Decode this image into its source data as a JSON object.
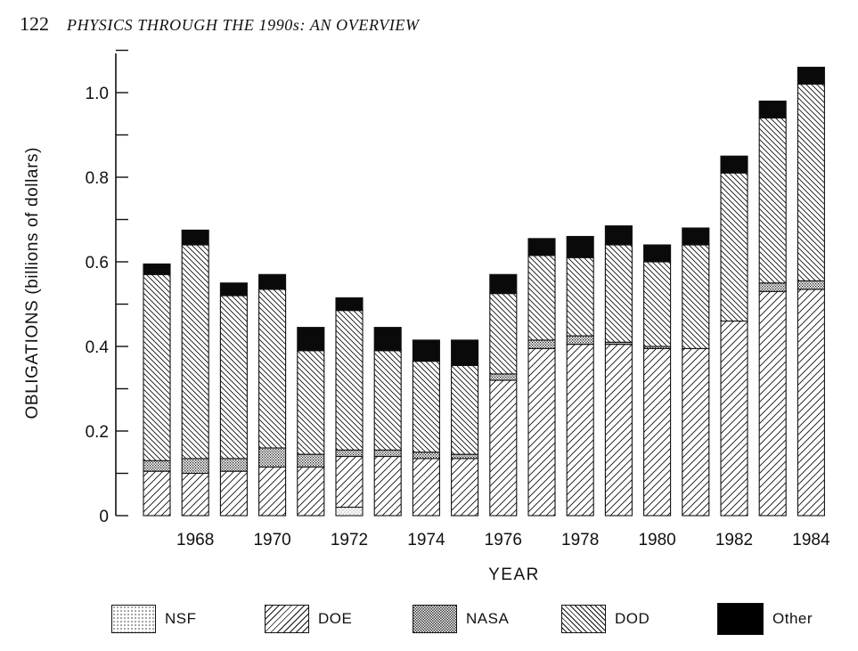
{
  "page": {
    "number": "122",
    "running_title": "PHYSICS THROUGH THE 1990s: AN OVERVIEW"
  },
  "colors": {
    "ink": "#111111",
    "background": "#ffffff",
    "NSF": "dotted-light",
    "DOE": "hatch-forward",
    "NASA": "dotted-dense",
    "DOD": "hatch-back",
    "Other": "#000000"
  },
  "chart_data": {
    "type": "bar",
    "stacked": true,
    "title": "",
    "xlabel": "YEAR",
    "ylabel": "OBLIGATIONS (billions of dollars)",
    "ylim": [
      0,
      1.1
    ],
    "yticks": [
      0,
      0.2,
      0.4,
      0.6,
      0.8,
      1.0
    ],
    "ytick_labels": [
      "0",
      "0.2",
      "0.4",
      "0.6",
      "0.8",
      "1.0"
    ],
    "xtick_labels": [
      "1968",
      "1970",
      "1972",
      "1974",
      "1976",
      "1978",
      "1980",
      "1982",
      "1984"
    ],
    "categories": [
      1967,
      1968,
      1969,
      1970,
      1971,
      1972,
      1973,
      1974,
      1975,
      1976,
      1977,
      1978,
      1979,
      1980,
      1981,
      1982,
      1983,
      1984
    ],
    "legend_position": "bottom",
    "series": [
      {
        "name": "NSF",
        "pattern": "dotted-light",
        "values": [
          0,
          0,
          0,
          0,
          0,
          0.02,
          0,
          0,
          0,
          0,
          0,
          0,
          0,
          0,
          0,
          0,
          0,
          0
        ]
      },
      {
        "name": "DOE",
        "pattern": "hatch-forward",
        "values": [
          0.105,
          0.1,
          0.105,
          0.115,
          0.115,
          0.12,
          0.14,
          0.135,
          0.135,
          0.32,
          0.395,
          0.405,
          0.405,
          0.395,
          0.395,
          0.46,
          0.53,
          0.535
        ]
      },
      {
        "name": "NASA",
        "pattern": "dotted-dense",
        "values": [
          0.025,
          0.035,
          0.03,
          0.045,
          0.03,
          0.015,
          0.015,
          0.015,
          0.01,
          0.015,
          0.02,
          0.02,
          0.005,
          0.005,
          0.0,
          0.0,
          0.02,
          0.02
        ]
      },
      {
        "name": "DOD",
        "pattern": "hatch-back",
        "values": [
          0.44,
          0.505,
          0.385,
          0.375,
          0.245,
          0.33,
          0.235,
          0.215,
          0.21,
          0.19,
          0.2,
          0.185,
          0.23,
          0.2,
          0.245,
          0.35,
          0.39,
          0.465
        ]
      },
      {
        "name": "Other",
        "pattern": "solid",
        "values": [
          0.025,
          0.035,
          0.03,
          0.035,
          0.055,
          0.03,
          0.055,
          0.05,
          0.06,
          0.045,
          0.04,
          0.05,
          0.045,
          0.04,
          0.04,
          0.04,
          0.04,
          0.04
        ]
      }
    ]
  }
}
